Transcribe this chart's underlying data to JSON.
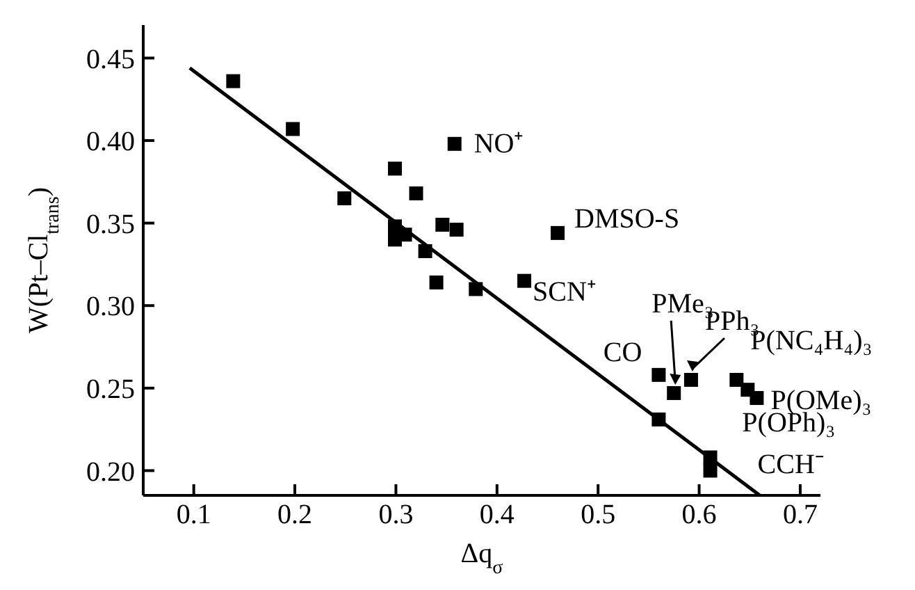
{
  "chart_data": {
    "type": "scatter",
    "xlabel": "Δq$_{σ}$",
    "ylabel": "W(Pt–Cl$_{trans}$)",
    "xlim": [
      0.05,
      0.72
    ],
    "ylim": [
      0.185,
      0.47
    ],
    "xticks": [
      0.1,
      0.2,
      0.3,
      0.4,
      0.5,
      0.6,
      0.7
    ],
    "yticks": [
      {
        "value": 0.2,
        "label": "0.20"
      },
      {
        "value": 0.25,
        "label": "0.25"
      },
      {
        "value": 0.3,
        "label": "0.30"
      },
      {
        "value": 0.35,
        "label": "0.35"
      },
      {
        "value": 0.4,
        "label": "0.40"
      },
      {
        "value": 0.45,
        "label": "0.45"
      }
    ],
    "grid": false,
    "legend": false,
    "marker": "square",
    "series": [
      {
        "color": "#000000",
        "x": [
          0.139,
          0.198,
          0.249,
          0.299,
          0.32,
          0.358,
          0.299,
          0.299,
          0.309,
          0.329,
          0.346,
          0.36,
          0.34,
          0.379,
          0.427,
          0.46,
          0.56,
          0.575,
          0.592,
          0.637,
          0.648,
          0.657,
          0.56,
          0.611,
          0.611
        ],
        "values": [
          0.436,
          0.407,
          0.365,
          0.383,
          0.368,
          0.398,
          0.348,
          0.34,
          0.343,
          0.333,
          0.349,
          0.346,
          0.314,
          0.31,
          0.315,
          0.344,
          0.258,
          0.247,
          0.255,
          0.255,
          0.249,
          0.244,
          0.231,
          0.208,
          0.2
        ]
      },
      {
        "type": "line",
        "color": "#000000",
        "x": [
          0.096,
          0.66
        ],
        "values": [
          0.444,
          0.185
        ],
        "marker": "none",
        "line_style": "solid"
      }
    ],
    "annotations": [
      {
        "text": "NO⁺",
        "x": 0.358,
        "y": 0.398
      },
      {
        "text": "DMSO-S",
        "x": 0.46,
        "y": 0.344
      },
      {
        "text": "SCN⁺",
        "x": 0.427,
        "y": 0.315
      },
      {
        "text": "CO",
        "x": 0.56,
        "y": 0.258
      },
      {
        "text": "PMe₃",
        "x": 0.575,
        "y": 0.247
      },
      {
        "text": "PPh₃",
        "x": 0.592,
        "y": 0.255
      },
      {
        "text": "P(NC₄H₄)₃",
        "x": 0.637,
        "y": 0.255
      },
      {
        "text": "P(OMe)₃",
        "x": 0.657,
        "y": 0.244
      },
      {
        "text": "P(OPh)₃",
        "x": 0.648,
        "y": 0.249
      },
      {
        "text": "CCH⁻",
        "x": 0.611,
        "y": 0.2
      }
    ]
  }
}
